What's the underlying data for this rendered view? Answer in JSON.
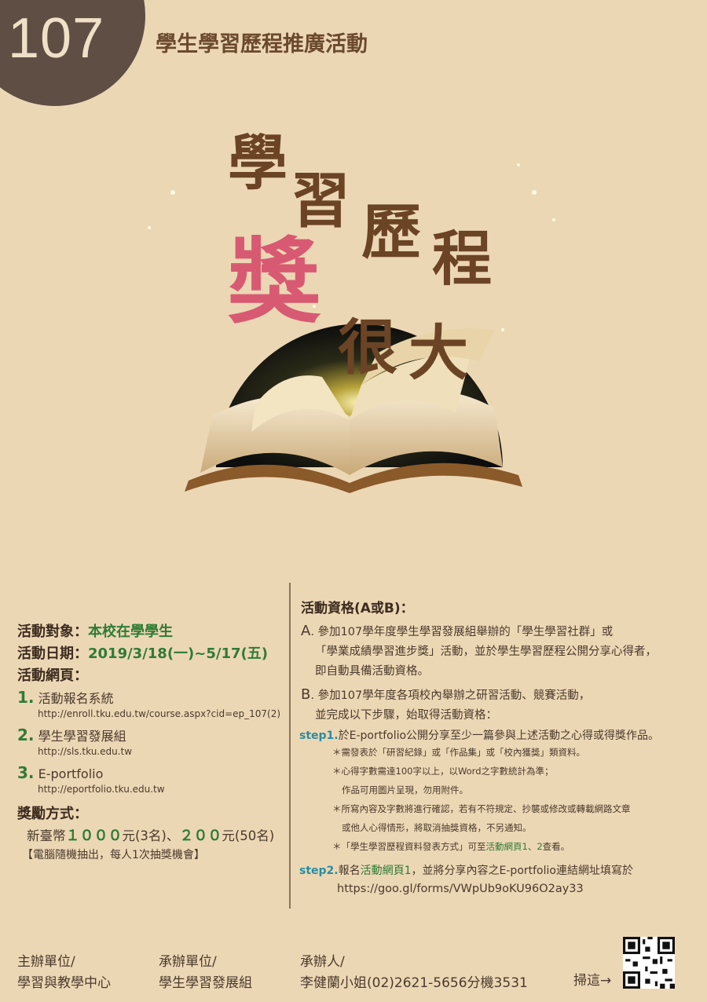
{
  "badge": {
    "number": "107"
  },
  "header": {
    "title": "學生學習歷程推廣活動"
  },
  "hero": {
    "chars": [
      "學",
      "習",
      "歷",
      "程",
      "獎",
      "很",
      "大"
    ]
  },
  "left": {
    "target_label": "活動對象：",
    "target_value": "本校在學學生",
    "date_label": "活動日期：",
    "date_value": "2019/3/18(一)~5/17(五)",
    "web_label": "活動網頁：",
    "links": [
      {
        "num": "1.",
        "title": "活動報名系統",
        "url": "http://enroll.tku.edu.tw/course.aspx?cid=ep_107(2)"
      },
      {
        "num": "2.",
        "title": "學生學習發展組",
        "url": "http://sls.tku.edu.tw"
      },
      {
        "num": "3.",
        "title": "E-portfolio",
        "url": "http://eportfolio.tku.edu.tw"
      }
    ],
    "reward_label": "獎勵方式：",
    "reward_prefix": "新臺幣",
    "reward_1000": "１０００",
    "reward_mid": "元(3名)、",
    "reward_200": "２００",
    "reward_suffix": "元(50名)",
    "reward_note": "【電腦隨機抽出，每人1次抽獎機會】"
  },
  "right": {
    "heading": "活動資格(A或B)：",
    "a_letter": "A",
    "a_line1": ". 參加107學年度學生學習發展組舉辦的「學生學習社群」或",
    "a_line2": "「學業成績學習進步獎」活動，並於學生學習歷程公開分享心得者，",
    "a_line3": "即自動具備活動資格。",
    "b_letter": "B",
    "b_line1": ". 參加107學年度各項校內舉辦之研習活動、競賽活動，",
    "b_line2": "並完成以下步驟，始取得活動資格：",
    "step1_label": "step1.",
    "step1_text": "於E-portfolio公開分享至少一篇參與上述活動之心得或得獎作品。",
    "notes": [
      "＊需發表於「研習紀錄」或「作品集」或「校內獲獎」類資料。",
      "＊心得字數需達100字以上，以Word之字數統計為準；",
      "作品可用圖片呈現，勿用附件。",
      "＊所寫內容及字數將進行確認，若有不符規定、抄襲或修改或轉載網路文章",
      "或他人心得情形，將取消抽獎資格，不另通知。"
    ],
    "note_final_a": "＊「學生學習歷程資料發表方式」可至",
    "note_final_link": "活動網頁1、2",
    "note_final_b": "查看。",
    "step2_label": "step2.",
    "step2_a": "報名",
    "step2_link": "活動網頁1",
    "step2_b": "，並將分享內容之E-portfolio連結網址填寫於",
    "step2_url": "https://goo.gl/forms/VWpUb9oKU96O2ay33"
  },
  "footer": {
    "host_label": "主辦單位/",
    "host_value": "學習與教學中心",
    "org_label": "承辦單位/",
    "org_value": "學生學習發展組",
    "contact_label": "承辦人/",
    "contact_value": "李健蘭小姐(02)2621-5656分機3531",
    "scan": "掃這→"
  }
}
